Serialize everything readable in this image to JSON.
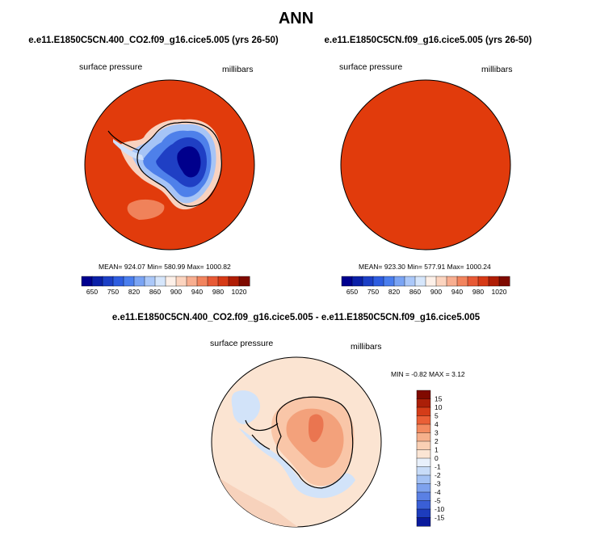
{
  "page_title": "ANN",
  "chart_data": [
    {
      "type": "heatmap",
      "projection": "south-polar-stereographic",
      "title": "e.e11.E1850C5CN.400_CO2.f09_g16.cice5.005 (yrs 26-50)",
      "variable": "surface pressure",
      "units": "millibars",
      "stats": {
        "mean": "924.07",
        "min": "580.99",
        "max": "1000.82"
      },
      "stats_text": "MEAN= 924.07   Min= 580.99   Max= 1000.82",
      "colorbar": {
        "orientation": "horizontal",
        "tick_labels": [
          "650",
          "750",
          "820",
          "860",
          "900",
          "940",
          "980",
          "1020"
        ],
        "colors": [
          "#00008f",
          "#0b20a8",
          "#1c3fc6",
          "#2e5de0",
          "#4a7eee",
          "#7aa4f4",
          "#abc8f9",
          "#d6e6fb",
          "#fdf0e8",
          "#fcd4bf",
          "#f8ae90",
          "#f2845e",
          "#e85a36",
          "#d63a16",
          "#b01d05",
          "#7f0a00"
        ]
      }
    },
    {
      "type": "heatmap",
      "projection": "south-polar-stereographic",
      "title": "e.e11.E1850C5CN.f09_g16.cice5.005 (yrs 26-50)",
      "variable": "surface pressure",
      "units": "millibars",
      "stats": {
        "mean": "923.30",
        "min": "577.91",
        "max": "1000.24"
      },
      "stats_text": "MEAN= 923.30   Min= 577.91   Max= 1000.24",
      "colorbar": {
        "orientation": "horizontal",
        "tick_labels": [
          "650",
          "750",
          "820",
          "860",
          "900",
          "940",
          "980",
          "1020"
        ],
        "colors": [
          "#00008f",
          "#0b20a8",
          "#1c3fc6",
          "#2e5de0",
          "#4a7eee",
          "#7aa4f4",
          "#abc8f9",
          "#d6e6fb",
          "#fdf0e8",
          "#fcd4bf",
          "#f8ae90",
          "#f2845e",
          "#e85a36",
          "#d63a16",
          "#b01d05",
          "#7f0a00"
        ]
      }
    },
    {
      "type": "heatmap",
      "projection": "south-polar-stereographic",
      "title": "e.e11.E1850C5CN.400_CO2.f09_g16.cice5.005 - e.e11.E1850C5CN.f09_g16.cice5.005",
      "variable": "surface pressure",
      "units": "millibars",
      "stats": {
        "min": "-0.82",
        "max": "3.12"
      },
      "stats_text": "MIN =  -0.82  MAX =   3.12",
      "colorbar": {
        "orientation": "vertical",
        "tick_labels": [
          "15",
          "10",
          "5",
          "4",
          "3",
          "2",
          "1",
          "0",
          "-1",
          "-2",
          "-3",
          "-4",
          "-5",
          "-10",
          "-15"
        ],
        "colors": [
          "#800a00",
          "#ab1f08",
          "#d43c18",
          "#ea5f36",
          "#f38a60",
          "#f6b08c",
          "#fad0b4",
          "#fbe5d4",
          "#e8f0fb",
          "#c8dcf8",
          "#a4c2f4",
          "#7ea2ee",
          "#5a80e4",
          "#3a5fd6",
          "#1d3cbd",
          "#0a1a9c"
        ]
      }
    }
  ]
}
